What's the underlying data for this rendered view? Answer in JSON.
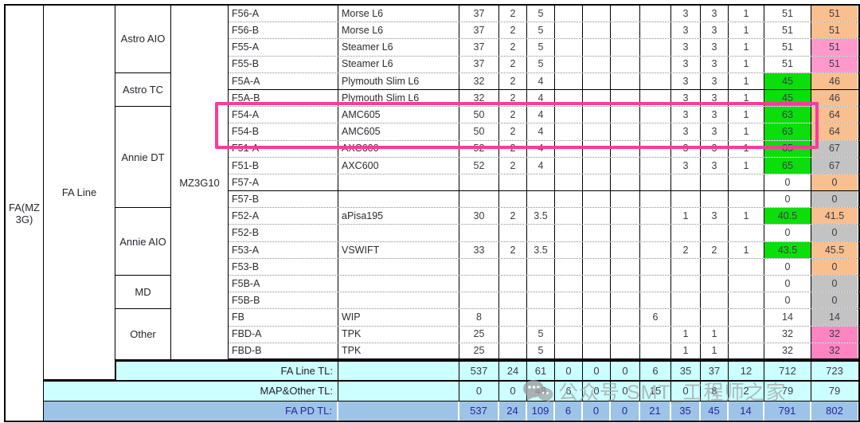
{
  "left": {
    "area_label": "FA(MZ 3G)",
    "line_label": "FA Line",
    "machine_label": "MZ3G10",
    "groups": [
      {
        "label": "Astro AIO",
        "rows": 4
      },
      {
        "label": "Astro TC",
        "rows": 2
      },
      {
        "label": "Annie DT",
        "rows": 6
      },
      {
        "label": "Annie AIO",
        "rows": 4
      },
      {
        "label": "MD",
        "rows": 2
      },
      {
        "label": "Other",
        "rows": 3
      }
    ]
  },
  "rows": [
    {
      "station": "F56-A",
      "model": "Morse L6",
      "v": [
        "37",
        "2",
        "5",
        "",
        "",
        "",
        "",
        "3",
        "3",
        "1",
        "51",
        "51"
      ],
      "c11": "",
      "c12": "orange"
    },
    {
      "station": "F56-B",
      "model": "Morse L6",
      "v": [
        "37",
        "2",
        "5",
        "",
        "",
        "",
        "",
        "3",
        "3",
        "1",
        "51",
        "51"
      ],
      "c11": "",
      "c12": "orange"
    },
    {
      "station": "F55-A",
      "model": "Steamer L6",
      "v": [
        "37",
        "2",
        "5",
        "",
        "",
        "",
        "",
        "3",
        "3",
        "1",
        "51",
        "51"
      ],
      "c11": "",
      "c12": "pink"
    },
    {
      "station": "F55-B",
      "model": "Steamer L6",
      "v": [
        "37",
        "2",
        "5",
        "",
        "",
        "",
        "",
        "3",
        "3",
        "1",
        "51",
        "51"
      ],
      "c11": "",
      "c12": "pink"
    },
    {
      "station": "F5A-A",
      "model": "Plymouth Slim L6",
      "v": [
        "32",
        "2",
        "4",
        "",
        "",
        "",
        "",
        "3",
        "3",
        "1",
        "45",
        "46"
      ],
      "c11": "green",
      "c12": "orange",
      "solid": true
    },
    {
      "station": "F5A-B",
      "model": "Plymouth Slim L6",
      "v": [
        "32",
        "2",
        "4",
        "",
        "",
        "",
        "",
        "3",
        "3",
        "1",
        "45",
        "46"
      ],
      "c11": "green",
      "c12": "orange"
    },
    {
      "station": "F54-A",
      "model": "AMC605",
      "v": [
        "50",
        "2",
        "4",
        "",
        "",
        "",
        "",
        "3",
        "3",
        "1",
        "63",
        "64"
      ],
      "c11": "green",
      "c12": "orange"
    },
    {
      "station": "F54-B",
      "model": "AMC605",
      "v": [
        "50",
        "2",
        "4",
        "",
        "",
        "",
        "",
        "3",
        "3",
        "1",
        "63",
        "64"
      ],
      "c11": "green",
      "c12": "orange"
    },
    {
      "station": "F51-A",
      "model": "AXC600",
      "v": [
        "52",
        "2",
        "4",
        "",
        "",
        "",
        "",
        "3",
        "3",
        "1",
        "65",
        "67"
      ],
      "c11": "green",
      "c12": "gray"
    },
    {
      "station": "F51-B",
      "model": "AXC600",
      "v": [
        "52",
        "2",
        "4",
        "",
        "",
        "",
        "",
        "3",
        "3",
        "1",
        "65",
        "67"
      ],
      "c11": "green",
      "c12": "gray"
    },
    {
      "station": "F57-A",
      "model": "",
      "v": [
        "",
        "",
        "",
        "",
        "",
        "",
        "",
        "",
        "",
        "",
        "0",
        "0"
      ],
      "c11": "",
      "c12": "orange",
      "solid": true
    },
    {
      "station": "F57-B",
      "model": "",
      "v": [
        "",
        "",
        "",
        "",
        "",
        "",
        "",
        "",
        "",
        "",
        "0",
        "0"
      ],
      "c11": "",
      "c12": "gray"
    },
    {
      "station": "F52-A",
      "model": "aPisa195",
      "v": [
        "30",
        "2",
        "3.5",
        "",
        "",
        "",
        "",
        "1",
        "3",
        "1",
        "40.5",
        "41.5"
      ],
      "c11": "green",
      "c12": "orange"
    },
    {
      "station": "F52-B",
      "model": "",
      "v": [
        "",
        "",
        "",
        "",
        "",
        "",
        "",
        "",
        "",
        "",
        "0",
        "0"
      ],
      "c11": "",
      "c12": "gray"
    },
    {
      "station": "F53-A",
      "model": "VSWIFT",
      "v": [
        "33",
        "2",
        "3.5",
        "",
        "",
        "",
        "",
        "2",
        "2",
        "1",
        "43.5",
        "45.5"
      ],
      "c11": "green",
      "c12": "orange"
    },
    {
      "station": "F53-B",
      "model": "",
      "v": [
        "",
        "",
        "",
        "",
        "",
        "",
        "",
        "",
        "",
        "",
        "0",
        "0"
      ],
      "c11": "",
      "c12": "orange"
    },
    {
      "station": "F5B-A",
      "model": "",
      "v": [
        "",
        "",
        "",
        "",
        "",
        "",
        "",
        "",
        "",
        "",
        "0",
        "0"
      ],
      "c11": "",
      "c12": "gray"
    },
    {
      "station": "F5B-B",
      "model": "",
      "v": [
        "",
        "",
        "",
        "",
        "",
        "",
        "",
        "",
        "",
        "",
        "0",
        "0"
      ],
      "c11": "",
      "c12": "gray"
    },
    {
      "station": "FB",
      "model": "WIP",
      "v": [
        "8",
        "",
        "",
        "",
        "",
        "",
        "6",
        "",
        "",
        "",
        "14",
        "14"
      ],
      "c11": "",
      "c12": "gray"
    },
    {
      "station": "FBD-A",
      "model": "TPK",
      "v": [
        "25",
        "",
        "5",
        "",
        "",
        "",
        "",
        "1",
        "1",
        "",
        "32",
        "32"
      ],
      "c11": "",
      "c12": "pink2"
    },
    {
      "station": "FBD-B",
      "model": "TPK",
      "v": [
        "25",
        "",
        "5",
        "",
        "",
        "",
        "",
        "1",
        "1",
        "",
        "32",
        "32"
      ],
      "c11": "",
      "c12": "pink2"
    }
  ],
  "totals": [
    {
      "label": "FA Line TL:",
      "theme": "cyan",
      "v": [
        "537",
        "24",
        "61",
        "0",
        "0",
        "0",
        "6",
        "35",
        "37",
        "12",
        "712",
        "723"
      ]
    },
    {
      "label": "MAP&Other TL:",
      "theme": "cyan",
      "v": [
        "0",
        "0",
        "48",
        "6",
        "0",
        "0",
        "15",
        "0",
        "8",
        "2",
        "79",
        "79"
      ]
    },
    {
      "label": "FA PD TL:",
      "theme": "blue",
      "v": [
        "537",
        "24",
        "109",
        "6",
        "0",
        "0",
        "21",
        "35",
        "45",
        "14",
        "791",
        "802"
      ]
    }
  ],
  "highlight": {
    "rows": [
      "F54-A",
      "F54-B"
    ]
  },
  "watermark": {
    "icon": "wechat-icon",
    "text": "公众号 SMT_工程师之家"
  },
  "colors": {
    "orange": "#FABF8F",
    "pink": "#FF99CC",
    "pink2": "#FF85C2",
    "gray": "#C3C3C3",
    "green": "#0ADF0A",
    "cyan": "#CCFFFF",
    "blue": "#9DC3E6",
    "magenta": "#FA3C98",
    "navy": "#2626A2"
  }
}
